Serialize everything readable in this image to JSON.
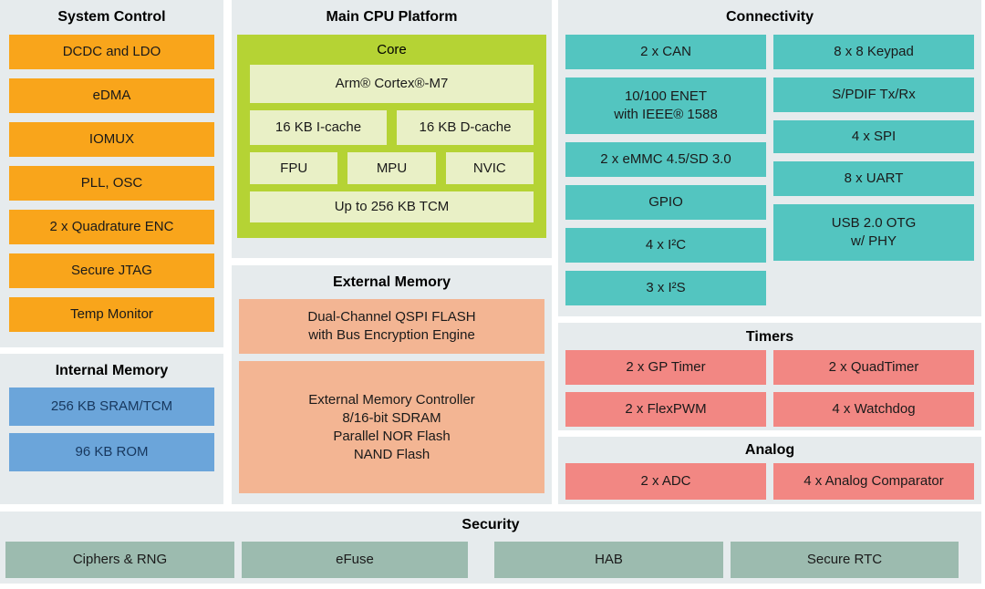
{
  "colors": {
    "page_bg": "#ffffff",
    "panel_bg": "#e6ebed",
    "orange": "#f9a51b",
    "blue": "#6ba5da",
    "blue_text": "#17375d",
    "green": "#b5d334",
    "light_green": "#e9f0c6",
    "salmon": "#f3b593",
    "teal": "#53c5c0",
    "pink": "#f28783",
    "sage": "#9cbbaf",
    "text": "#1a1a1a"
  },
  "panels": {
    "system_control": {
      "title": "System Control",
      "items": [
        "DCDC and LDO",
        "eDMA",
        "IOMUX",
        "PLL, OSC",
        "2 x Quadrature ENC",
        "Secure JTAG",
        "Temp Monitor"
      ]
    },
    "internal_memory": {
      "title": "Internal Memory",
      "items": [
        "256 KB SRAM/TCM",
        "96 KB ROM"
      ]
    },
    "main_cpu": {
      "title": "Main CPU Platform",
      "core_label": "Core",
      "cpu": "Arm® Cortex®-M7",
      "caches": [
        "16 KB I-cache",
        "16 KB D-cache"
      ],
      "units": [
        "FPU",
        "MPU",
        "NVIC"
      ],
      "tcm": "Up to 256 KB TCM"
    },
    "external_memory": {
      "title": "External Memory",
      "qspi_lines": [
        "Dual-Channel QSPI FLASH",
        "with Bus Encryption Engine"
      ],
      "emc_lines": [
        "External Memory Controller",
        "8/16-bit SDRAM",
        "Parallel NOR Flash",
        "NAND Flash"
      ]
    },
    "connectivity": {
      "title": "Connectivity",
      "left_items": {
        "can": "2 x CAN",
        "enet_line1": "10/100 ENET",
        "enet_line2": "with IEEE® 1588",
        "emmc": "2 x eMMC 4.5/SD 3.0",
        "gpio": "GPIO",
        "i2c": "4 x I²C",
        "i2s": "3 x I²S"
      },
      "right_items": {
        "keypad": "8 x 8 Keypad",
        "spdif": "S/PDIF Tx/Rx",
        "spi": "4 x SPI",
        "uart": "8 x UART",
        "usb_line1": "USB 2.0 OTG",
        "usb_line2": "w/ PHY"
      }
    },
    "timers": {
      "title": "Timers",
      "items": [
        "2 x GP Timer",
        "2 x QuadTimer",
        "2 x FlexPWM",
        "4 x Watchdog"
      ]
    },
    "analog": {
      "title": "Analog",
      "items": [
        "2 x ADC",
        "4 x Analog Comparator"
      ]
    },
    "security": {
      "title": "Security",
      "items": [
        "Ciphers & RNG",
        "eFuse",
        "HAB",
        "Secure RTC"
      ]
    }
  }
}
